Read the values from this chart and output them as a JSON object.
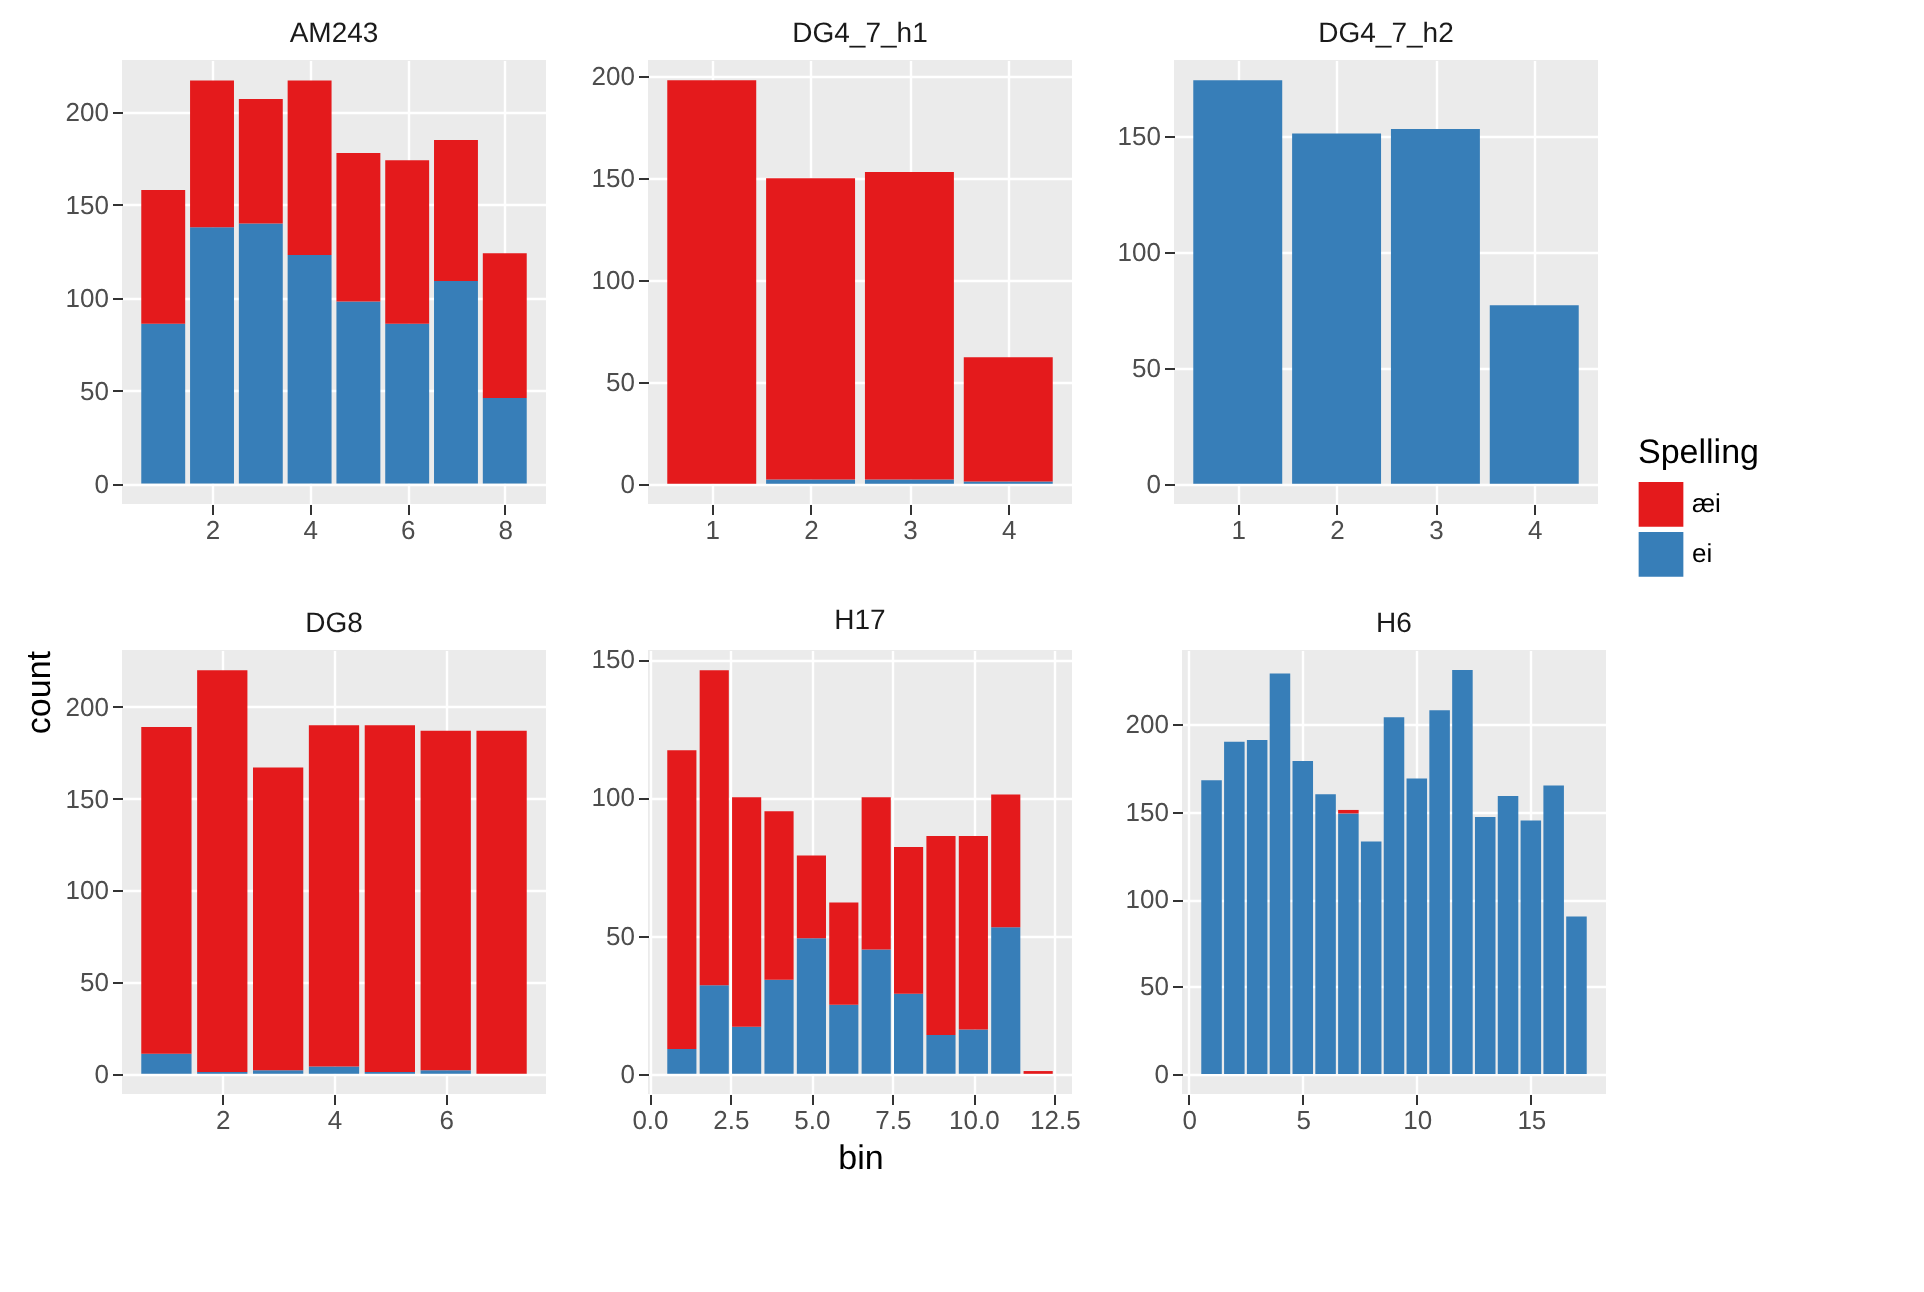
{
  "chart_data": [
    {
      "type": "bar",
      "title": "AM243",
      "stacked": true,
      "grid": true,
      "x": [
        1,
        2,
        3,
        4,
        5,
        6,
        7,
        8
      ],
      "xlim": [
        0.155,
        8.845
      ],
      "xticks": [
        2,
        4,
        6,
        8
      ],
      "ylim": [
        -11,
        228
      ],
      "yticks": [
        0,
        50,
        100,
        150,
        200
      ],
      "series": [
        {
          "color": "#377eb8",
          "values": [
            86,
            138,
            140,
            123,
            98,
            86,
            109,
            46
          ]
        },
        {
          "color": "#e41a1c",
          "values": [
            72,
            79,
            67,
            94,
            80,
            88,
            76,
            78
          ]
        }
      ]
    },
    {
      "type": "bar",
      "title": "DG4_7_h1",
      "stacked": true,
      "grid": true,
      "x": [
        1,
        2,
        3,
        4
      ],
      "xlim": [
        0.355,
        4.645
      ],
      "xticks": [
        1,
        2,
        3,
        4
      ],
      "ylim": [
        -10,
        208
      ],
      "yticks": [
        0,
        50,
        100,
        150,
        200
      ],
      "series": [
        {
          "color": "#377eb8",
          "values": [
            0,
            2,
            2,
            1
          ]
        },
        {
          "color": "#e41a1c",
          "values": [
            198,
            148,
            151,
            61
          ]
        }
      ]
    },
    {
      "type": "bar",
      "title": "DG4_7_h2",
      "stacked": true,
      "grid": true,
      "legend": "right",
      "legend_title": "Spelling",
      "x": [
        1,
        2,
        3,
        4
      ],
      "xlim": [
        0.355,
        4.645
      ],
      "xticks": [
        1,
        2,
        3,
        4
      ],
      "ylim": [
        -8.7,
        182.7
      ],
      "yticks": [
        0,
        50,
        100,
        150
      ],
      "series": [
        {
          "name": "ei",
          "color": "#377eb8",
          "values": [
            174,
            151,
            153,
            77
          ]
        },
        {
          "name": "æi",
          "color": "#e41a1c",
          "values": [
            0,
            0,
            0,
            0
          ]
        }
      ]
    },
    {
      "type": "bar",
      "title": "DG8",
      "ylabel": "count",
      "stacked": true,
      "grid": true,
      "x": [
        1,
        2,
        3,
        4,
        5,
        6,
        7
      ],
      "xlim": [
        0.205,
        7.795
      ],
      "xticks": [
        2,
        4,
        6
      ],
      "ylim": [
        -11,
        231
      ],
      "yticks": [
        0,
        50,
        100,
        150,
        200
      ],
      "series": [
        {
          "color": "#377eb8",
          "values": [
            11,
            1,
            2,
            4,
            1,
            2,
            0
          ]
        },
        {
          "color": "#e41a1c",
          "values": [
            178,
            219,
            165,
            186,
            189,
            185,
            187
          ]
        }
      ]
    },
    {
      "type": "bar",
      "title": "H17",
      "xlabel": "bin",
      "stacked": true,
      "grid": true,
      "x": [
        1,
        2,
        3,
        4,
        5,
        6,
        7,
        8,
        9,
        10,
        11,
        12
      ],
      "xlim": [
        -0.045,
        13.045
      ],
      "xticks": [
        {
          "value": 0,
          "label": "0.0"
        },
        2.5,
        {
          "value": 5,
          "label": "5.0"
        },
        7.5,
        {
          "value": 10,
          "label": "10.0"
        },
        12.5
      ],
      "ylim": [
        -7.3,
        153.3
      ],
      "yticks": [
        0,
        50,
        100,
        150
      ],
      "series": [
        {
          "color": "#377eb8",
          "values": [
            9,
            32,
            17,
            34,
            49,
            25,
            45,
            29,
            14,
            16,
            53,
            0
          ]
        },
        {
          "color": "#e41a1c",
          "values": [
            108,
            114,
            83,
            61,
            30,
            37,
            55,
            53,
            72,
            70,
            48,
            1
          ]
        }
      ]
    },
    {
      "type": "bar",
      "title": "H6",
      "stacked": true,
      "grid": true,
      "x": [
        1,
        2,
        3,
        4,
        5,
        6,
        7,
        8,
        9,
        10,
        11,
        12,
        13,
        14,
        15,
        16,
        17
      ],
      "xlim": [
        -0.295,
        18.295
      ],
      "xticks": [
        0,
        5,
        10,
        15
      ],
      "ylim": [
        -11.5,
        242.5
      ],
      "yticks": [
        0,
        50,
        100,
        150,
        200
      ],
      "series": [
        {
          "color": "#377eb8",
          "values": [
            168,
            190,
            191,
            229,
            179,
            160,
            149,
            133,
            204,
            169,
            208,
            231,
            147,
            159,
            145,
            165,
            90
          ]
        },
        {
          "color": "#e41a1c",
          "values": [
            0,
            0,
            0,
            0,
            0,
            0,
            2,
            0,
            0,
            0,
            0,
            0,
            0,
            0,
            0,
            0,
            0
          ]
        }
      ]
    }
  ]
}
